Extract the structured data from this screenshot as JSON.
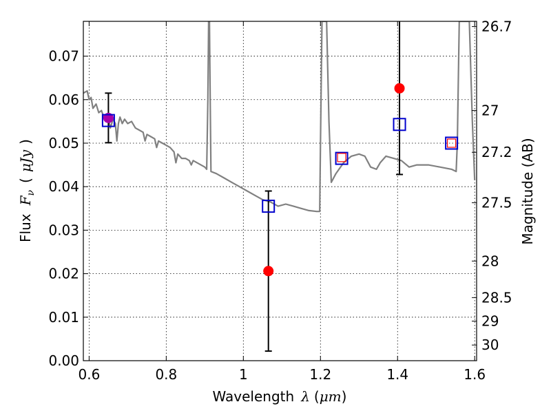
{
  "chart_data": {
    "type": "scatter",
    "title": "",
    "xlabel": {
      "text": "Wavelength",
      "symbol": "λ",
      "unit_open": "(",
      "unit": "μm",
      "unit_close": ")"
    },
    "ylabel": {
      "text": "Flux",
      "symbol": "F",
      "subscript": "ν",
      "unit_open": "(",
      "unit": "μJy",
      "unit_close": ")"
    },
    "ylabel_right": "Magnitude (AB)",
    "xlim": [
      0.585,
      1.605
    ],
    "ylim": [
      0.0,
      0.078
    ],
    "grid": true,
    "x_ticks": [
      {
        "value": 0.6,
        "label": "0.6"
      },
      {
        "value": 0.8,
        "label": "0.8"
      },
      {
        "value": 1.0,
        "label": "1"
      },
      {
        "value": 1.2,
        "label": "1.2"
      },
      {
        "value": 1.4,
        "label": "1.4"
      },
      {
        "value": 1.6,
        "label": "1.6"
      }
    ],
    "y_ticks": [
      {
        "value": 0.0,
        "label": "0.00"
      },
      {
        "value": 0.01,
        "label": "0.01"
      },
      {
        "value": 0.02,
        "label": "0.02"
      },
      {
        "value": 0.03,
        "label": "0.03"
      },
      {
        "value": 0.04,
        "label": "0.04"
      },
      {
        "value": 0.05,
        "label": "0.05"
      },
      {
        "value": 0.06,
        "label": "0.06"
      },
      {
        "value": 0.07,
        "label": "0.07"
      }
    ],
    "right_ticks": [
      {
        "flux": 0.0768,
        "label": "26.7"
      },
      {
        "flux": 0.0575,
        "label": "27"
      },
      {
        "flux": 0.0479,
        "label": "27.2"
      },
      {
        "flux": 0.0363,
        "label": "27.5"
      },
      {
        "flux": 0.0229,
        "label": "28"
      },
      {
        "flux": 0.0145,
        "label": "28.5"
      },
      {
        "flux": 0.0091,
        "label": "29"
      },
      {
        "flux": 0.0036,
        "label": "30"
      }
    ],
    "colors": {
      "model": "#808080",
      "observed": "#ff0000",
      "model_photometry": "#0000cc",
      "first_point": "#aa00aa",
      "errorbar": "#000000"
    },
    "series": [
      {
        "kind": "line",
        "points": [
          [
            0.585,
            0.0615
          ],
          [
            0.595,
            0.062
          ],
          [
            0.6,
            0.06
          ],
          [
            0.605,
            0.0605
          ],
          [
            0.61,
            0.058
          ],
          [
            0.618,
            0.059
          ],
          [
            0.625,
            0.057
          ],
          [
            0.632,
            0.0575
          ],
          [
            0.64,
            0.0555
          ],
          [
            0.648,
            0.0565
          ],
          [
            0.655,
            0.0535
          ],
          [
            0.662,
            0.0555
          ],
          [
            0.668,
            0.0545
          ],
          [
            0.672,
            0.0505
          ],
          [
            0.676,
            0.0545
          ],
          [
            0.68,
            0.056
          ],
          [
            0.686,
            0.0545
          ],
          [
            0.692,
            0.0555
          ],
          [
            0.7,
            0.0545
          ],
          [
            0.71,
            0.055
          ],
          [
            0.72,
            0.0535
          ],
          [
            0.73,
            0.053
          ],
          [
            0.74,
            0.0525
          ],
          [
            0.745,
            0.0505
          ],
          [
            0.75,
            0.052
          ],
          [
            0.76,
            0.0515
          ],
          [
            0.77,
            0.051
          ],
          [
            0.775,
            0.049
          ],
          [
            0.78,
            0.0505
          ],
          [
            0.79,
            0.05
          ],
          [
            0.8,
            0.0495
          ],
          [
            0.81,
            0.049
          ],
          [
            0.82,
            0.048
          ],
          [
            0.825,
            0.0455
          ],
          [
            0.83,
            0.0475
          ],
          [
            0.84,
            0.0465
          ],
          [
            0.85,
            0.0465
          ],
          [
            0.86,
            0.046
          ],
          [
            0.865,
            0.045
          ],
          [
            0.87,
            0.046
          ],
          [
            0.88,
            0.0455
          ],
          [
            0.89,
            0.045
          ],
          [
            0.9,
            0.0445
          ],
          [
            0.905,
            0.044
          ],
          [
            0.908,
            0.06
          ],
          [
            0.91,
            0.078
          ],
          [
            0.912,
            0.078
          ],
          [
            0.914,
            0.06
          ],
          [
            0.916,
            0.0435
          ],
          [
            0.93,
            0.043
          ],
          [
            0.95,
            0.042
          ],
          [
            0.97,
            0.041
          ],
          [
            0.99,
            0.04
          ],
          [
            1.01,
            0.039
          ],
          [
            1.03,
            0.038
          ],
          [
            1.05,
            0.037
          ],
          [
            1.07,
            0.0365
          ],
          [
            1.09,
            0.0355
          ],
          [
            1.11,
            0.036
          ],
          [
            1.13,
            0.0355
          ],
          [
            1.15,
            0.035
          ],
          [
            1.17,
            0.0345
          ],
          [
            1.19,
            0.0343
          ],
          [
            1.198,
            0.0343
          ],
          [
            1.2,
            0.05
          ],
          [
            1.204,
            0.078
          ],
          [
            1.216,
            0.078
          ],
          [
            1.222,
            0.055
          ],
          [
            1.228,
            0.041
          ],
          [
            1.24,
            0.043
          ],
          [
            1.26,
            0.0455
          ],
          [
            1.28,
            0.047
          ],
          [
            1.3,
            0.0475
          ],
          [
            1.315,
            0.047
          ],
          [
            1.33,
            0.0445
          ],
          [
            1.345,
            0.044
          ],
          [
            1.355,
            0.0455
          ],
          [
            1.37,
            0.047
          ],
          [
            1.39,
            0.0465
          ],
          [
            1.41,
            0.046
          ],
          [
            1.43,
            0.0445
          ],
          [
            1.45,
            0.045
          ],
          [
            1.48,
            0.045
          ],
          [
            1.51,
            0.0445
          ],
          [
            1.54,
            0.044
          ],
          [
            1.552,
            0.0435
          ],
          [
            1.555,
            0.05
          ],
          [
            1.56,
            0.078
          ],
          [
            1.586,
            0.078
          ],
          [
            1.594,
            0.055
          ],
          [
            1.6,
            0.0415
          ]
        ]
      },
      {
        "kind": "errorbar",
        "points": [
          {
            "x": 0.65,
            "y": 0.0558,
            "low": 0.0501,
            "high": 0.0615
          },
          {
            "x": 1.065,
            "y": 0.0206,
            "low": 0.0022,
            "high": 0.039
          },
          {
            "x": 1.405,
            "y": 0.0626,
            "low": 0.0428,
            "high": 0.0785
          }
        ]
      },
      {
        "kind": "scatter",
        "points": [
          {
            "x": 0.65,
            "y": 0.0558
          },
          {
            "x": 1.065,
            "y": 0.0206
          },
          {
            "x": 1.405,
            "y": 0.0626
          }
        ]
      },
      {
        "kind": "scatter",
        "points": [
          {
            "x": 0.65,
            "y": 0.0552
          },
          {
            "x": 1.065,
            "y": 0.0355
          },
          {
            "x": 1.255,
            "y": 0.0465
          },
          {
            "x": 1.405,
            "y": 0.0543
          },
          {
            "x": 1.54,
            "y": 0.05
          }
        ]
      },
      {
        "kind": "scatter",
        "points": [
          {
            "x": 1.255,
            "y": 0.0467
          },
          {
            "x": 1.54,
            "y": 0.05
          }
        ]
      }
    ]
  }
}
